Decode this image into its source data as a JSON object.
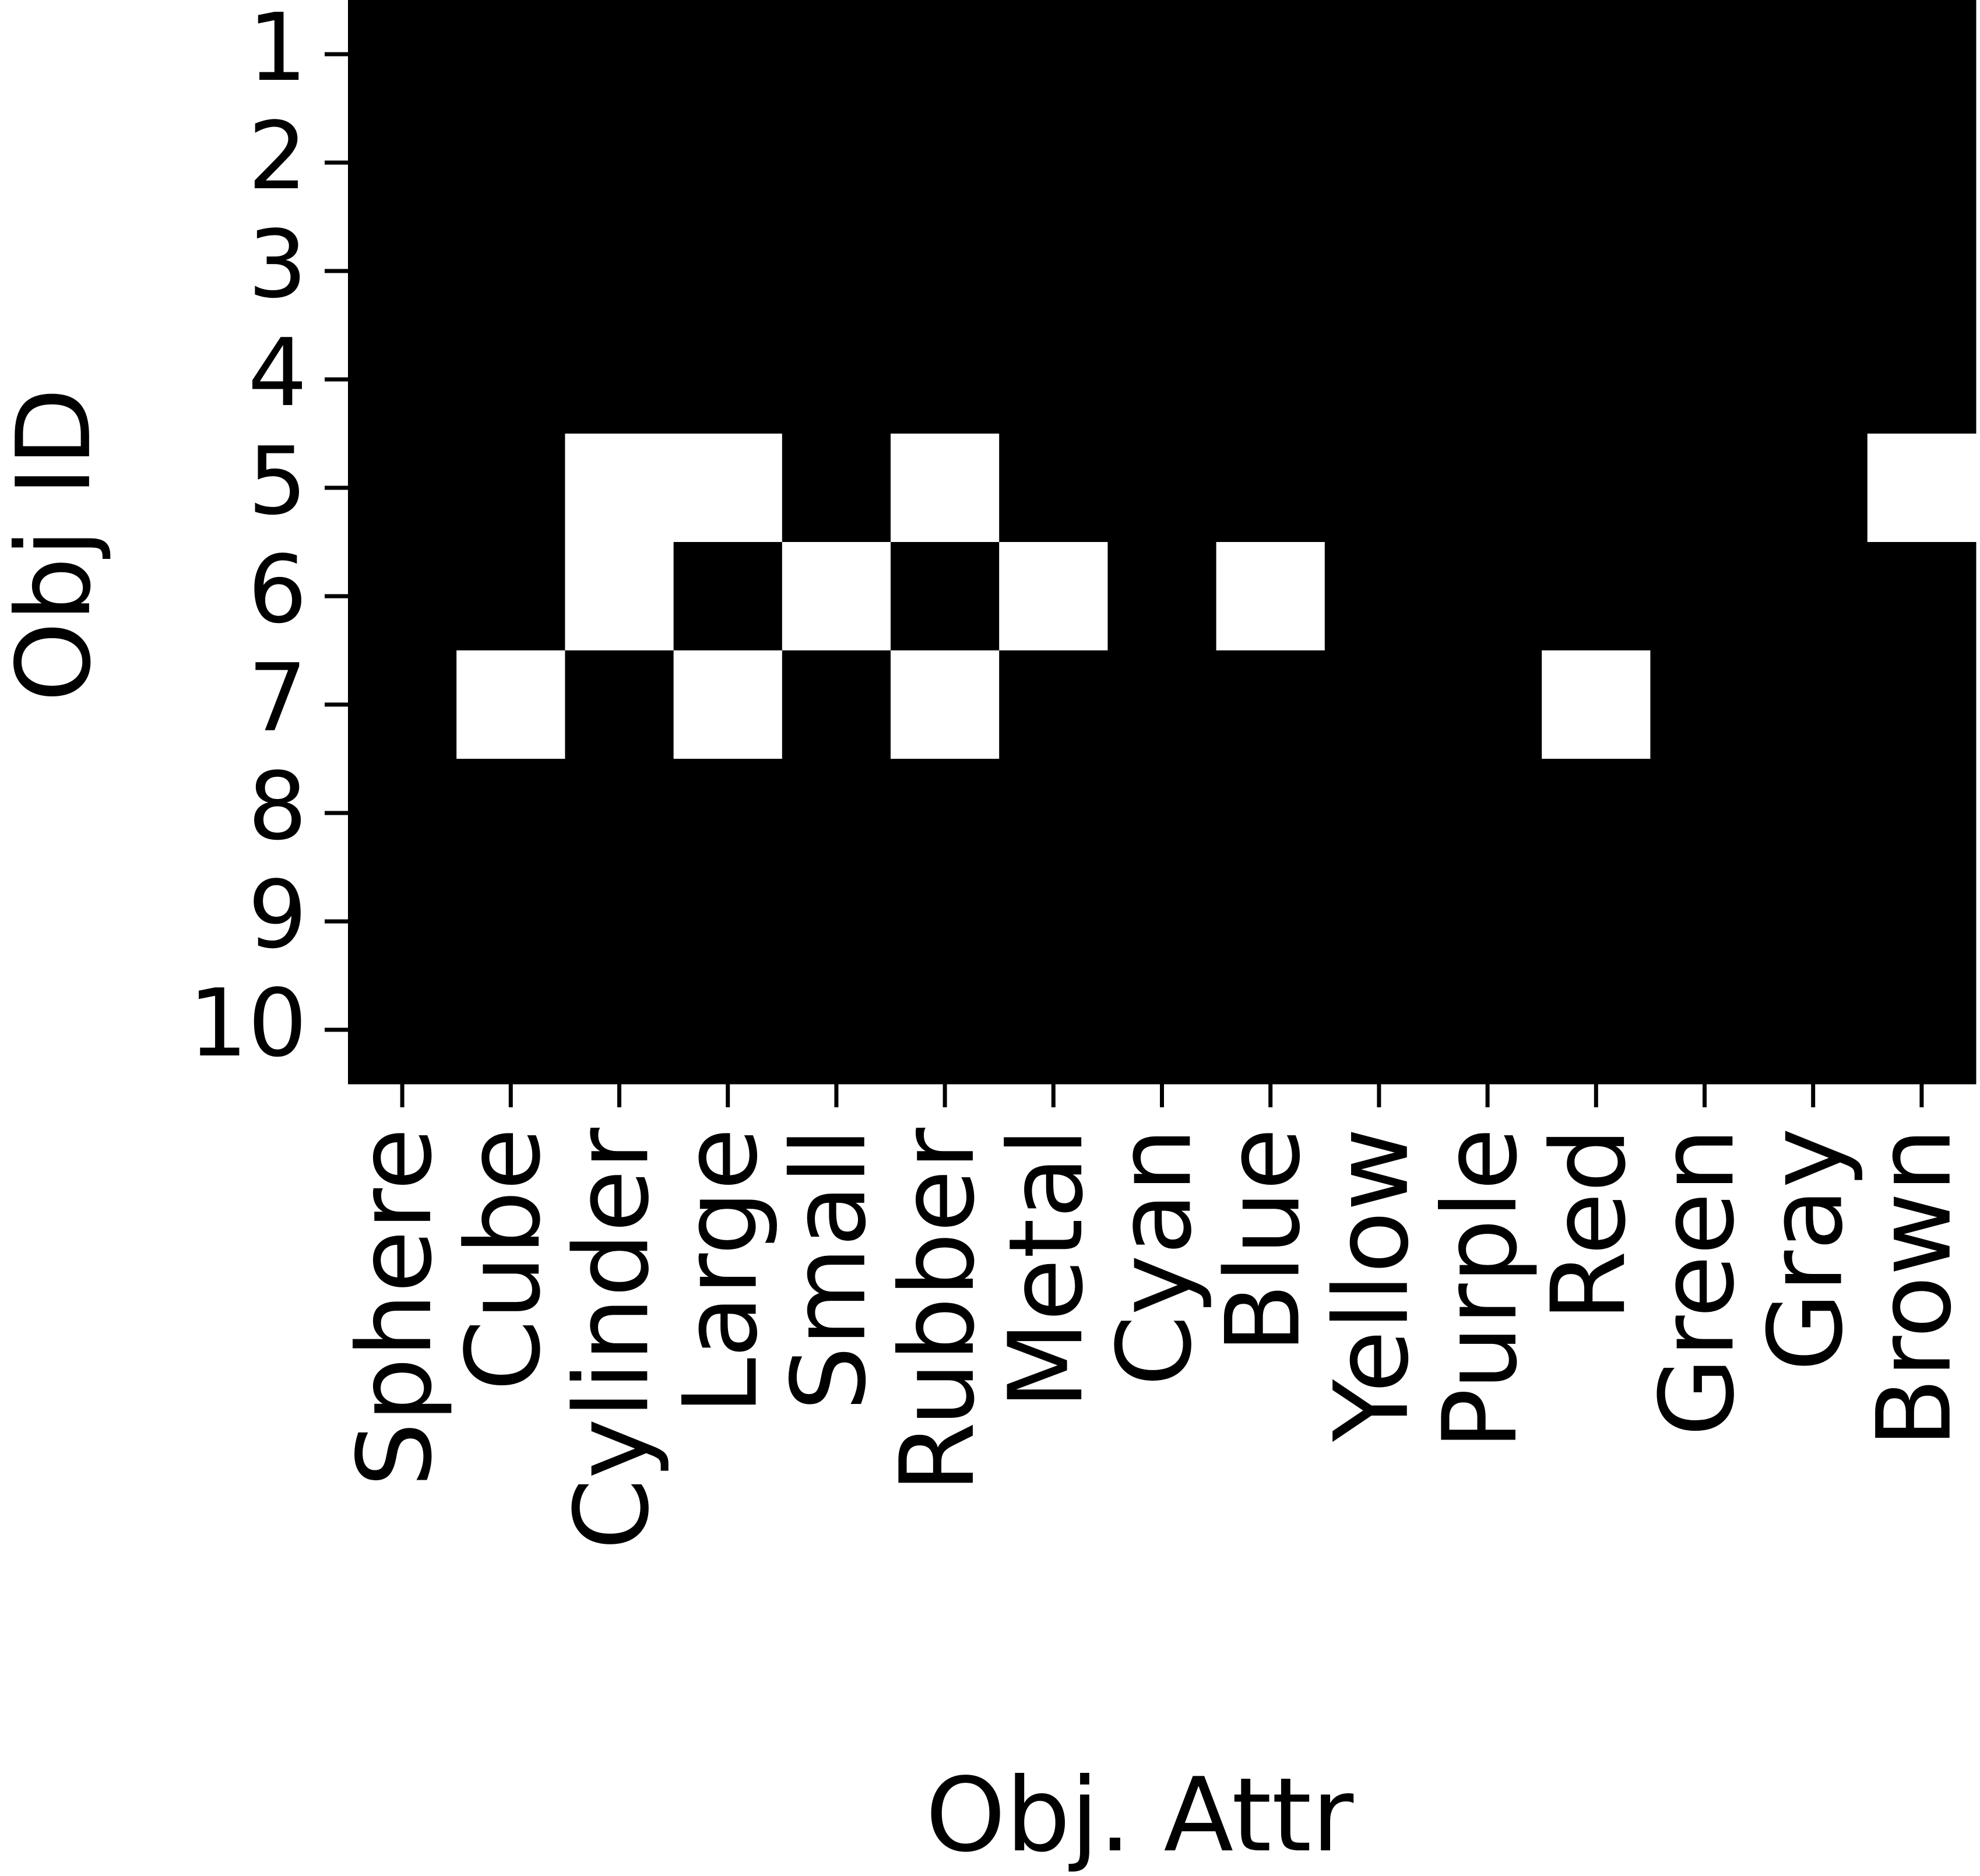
{
  "chart_data": {
    "type": "heatmap",
    "xlabel": "Obj. Attr",
    "ylabel": "Obj ID",
    "x_categories": [
      "Sphere",
      "Cube",
      "Cylinder",
      "Large",
      "Small",
      "Rubber",
      "Metal",
      "Cyan",
      "Blue",
      "Yellow",
      "Purple",
      "Red",
      "Green",
      "Gray",
      "Brown"
    ],
    "y_categories": [
      "1",
      "2",
      "3",
      "4",
      "5",
      "6",
      "7",
      "8",
      "9",
      "10"
    ],
    "values": [
      [
        0,
        0,
        0,
        0,
        0,
        0,
        0,
        0,
        0,
        0,
        0,
        0,
        0,
        0,
        0
      ],
      [
        0,
        0,
        0,
        0,
        0,
        0,
        0,
        0,
        0,
        0,
        0,
        0,
        0,
        0,
        0
      ],
      [
        0,
        0,
        0,
        0,
        0,
        0,
        0,
        0,
        0,
        0,
        0,
        0,
        0,
        0,
        0
      ],
      [
        0,
        0,
        0,
        0,
        0,
        0,
        0,
        0,
        0,
        0,
        0,
        0,
        0,
        0,
        0
      ],
      [
        0,
        0,
        1,
        1,
        0,
        1,
        0,
        0,
        0,
        0,
        0,
        0,
        0,
        0,
        1
      ],
      [
        0,
        0,
        1,
        0,
        1,
        0,
        1,
        0,
        1,
        0,
        0,
        0,
        0,
        0,
        0
      ],
      [
        0,
        1,
        0,
        1,
        0,
        1,
        0,
        0,
        0,
        0,
        0,
        1,
        0,
        0,
        0
      ],
      [
        0,
        0,
        0,
        0,
        0,
        0,
        0,
        0,
        0,
        0,
        0,
        0,
        0,
        0,
        0
      ],
      [
        0,
        0,
        0,
        0,
        0,
        0,
        0,
        0,
        0,
        0,
        0,
        0,
        0,
        0,
        0
      ],
      [
        0,
        0,
        0,
        0,
        0,
        0,
        0,
        0,
        0,
        0,
        0,
        0,
        0,
        0,
        0
      ]
    ],
    "colormap": {
      "0": "#000000",
      "1": "#ffffff"
    },
    "grid": false
  }
}
